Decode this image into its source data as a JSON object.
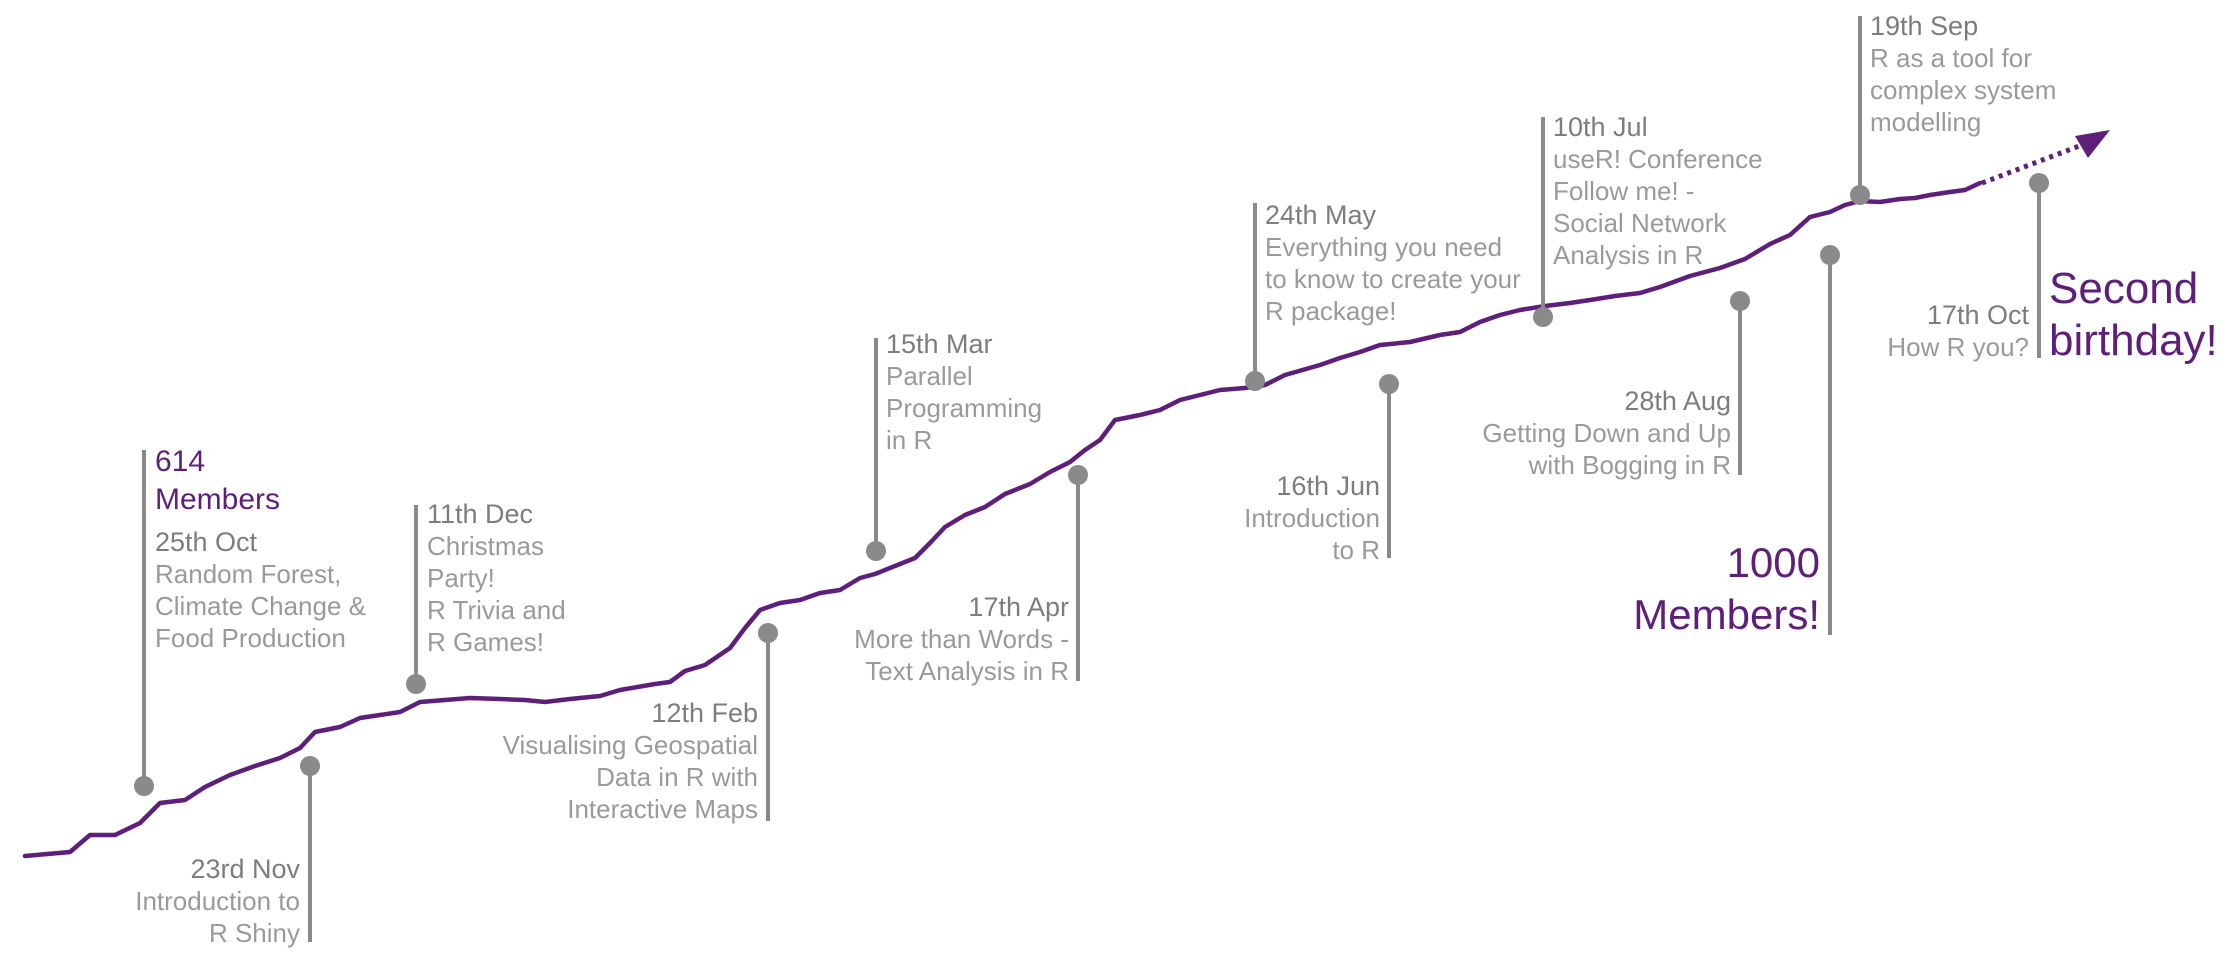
{
  "colors": {
    "growth_line": "#5e1f7a",
    "marker": "#8a8a8a",
    "date_text": "#7d7d7d",
    "desc_text": "#9a9a9a",
    "highlight": "#5e1f7a"
  },
  "milestones": {
    "start": {
      "l1": "614",
      "l2": "Members"
    },
    "thousand": {
      "l1": "1000",
      "l2": "Members!"
    },
    "second": {
      "l1": "Second",
      "l2": "birthday!"
    }
  },
  "events": [
    {
      "id": "oct25",
      "date": "25th Oct",
      "lines": [
        "Random Forest,",
        "Climate Change &",
        "Food Production"
      ]
    },
    {
      "id": "nov23",
      "date": "23rd Nov",
      "lines": [
        "Introduction to",
        "R Shiny"
      ]
    },
    {
      "id": "dec11",
      "date": "11th Dec",
      "lines": [
        "Christmas",
        "Party!",
        "R Trivia and",
        "R Games!"
      ]
    },
    {
      "id": "feb12",
      "date": "12th Feb",
      "lines": [
        "Visualising Geospatial",
        "Data in R with",
        "Interactive Maps"
      ]
    },
    {
      "id": "mar15",
      "date": "15th Mar",
      "lines": [
        "Parallel",
        "Programming",
        "in R"
      ]
    },
    {
      "id": "apr17",
      "date": "17th Apr",
      "lines": [
        "More than Words -",
        "Text Analysis in R"
      ]
    },
    {
      "id": "may24",
      "date": "24th May",
      "lines": [
        "Everything you need",
        "to know to create your",
        "R package!"
      ]
    },
    {
      "id": "jun16",
      "date": "16th Jun",
      "lines": [
        "Introduction",
        "to R"
      ]
    },
    {
      "id": "jul10",
      "date": "10th Jul",
      "lines": [
        "useR! Conference",
        "Follow me! -",
        "Social Network",
        "Analysis in R"
      ]
    },
    {
      "id": "aug28",
      "date": "28th Aug",
      "lines": [
        "Getting Down and Up",
        "with Bogging in R"
      ]
    },
    {
      "id": "sep19",
      "date": "19th Sep",
      "lines": [
        "R as a tool for",
        "complex system",
        "modelling"
      ]
    },
    {
      "id": "oct17",
      "date": "17th Oct",
      "lines": [
        "How R you?"
      ]
    }
  ]
}
